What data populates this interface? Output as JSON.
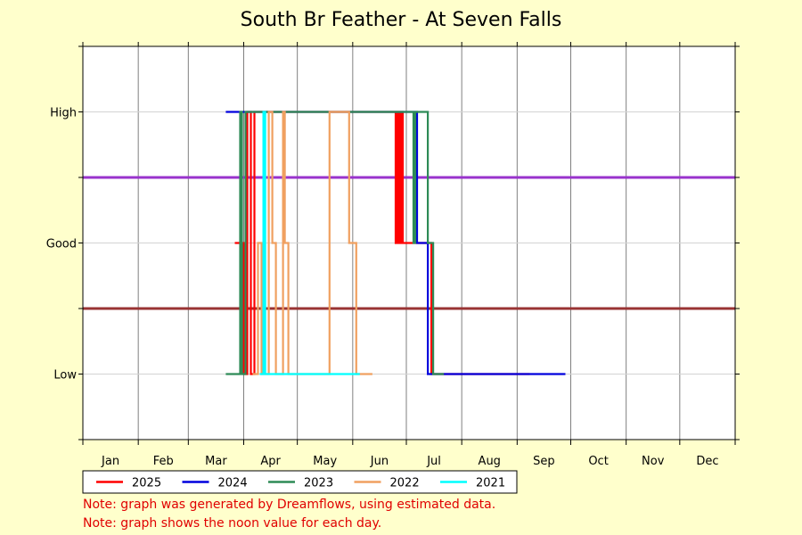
{
  "chart_data": {
    "type": "line",
    "title": "South Br Feather - At Seven Falls",
    "xlabel": "",
    "ylabel": "",
    "x_categories": [
      "Jan",
      "Feb",
      "Mar",
      "Apr",
      "May",
      "Jun",
      "Jul",
      "Aug",
      "Sep",
      "Oct",
      "Nov",
      "Dec"
    ],
    "y_categories": [
      "Low",
      "Good",
      "High"
    ],
    "y_levels": {
      "Low": 0,
      "Good": 1,
      "High": 2
    },
    "ylim": [
      -0.5,
      2.5
    ],
    "xlim_days": [
      0,
      365
    ],
    "grid": true,
    "legend_position": "bottom",
    "reference_lines": [
      {
        "y": 1.5,
        "color": "#9933cc"
      },
      {
        "y": 0.5,
        "color": "#993333"
      }
    ],
    "series": [
      {
        "name": "2025",
        "color": "#ff0000",
        "points": [
          [
            85,
            1
          ],
          [
            90,
            1
          ],
          [
            90,
            0
          ],
          [
            92,
            0
          ],
          [
            92,
            2
          ],
          [
            94,
            2
          ],
          [
            94,
            0
          ],
          [
            96,
            0
          ],
          [
            96,
            2
          ],
          [
            175,
            2
          ],
          [
            175,
            1
          ],
          [
            176,
            1
          ],
          [
            176,
            2
          ],
          [
            177,
            2
          ],
          [
            177,
            1
          ],
          [
            178,
            1
          ],
          [
            178,
            2
          ],
          [
            179,
            2
          ],
          [
            179,
            1
          ],
          [
            195,
            1
          ],
          [
            195,
            0
          ],
          [
            250,
            0
          ]
        ]
      },
      {
        "name": "2024",
        "color": "#0000dd",
        "points": [
          [
            80,
            2
          ],
          [
            187,
            2
          ],
          [
            187,
            1
          ],
          [
            193,
            1
          ],
          [
            193,
            0
          ],
          [
            270,
            0
          ]
        ]
      },
      {
        "name": "2023",
        "color": "#2e8b57",
        "points": [
          [
            80,
            0
          ],
          [
            88,
            0
          ],
          [
            88,
            2
          ],
          [
            89,
            2
          ],
          [
            89,
            0
          ],
          [
            91,
            0
          ],
          [
            91,
            2
          ],
          [
            185,
            2
          ],
          [
            185,
            1
          ],
          [
            186,
            1
          ],
          [
            186,
            2
          ],
          [
            193,
            2
          ],
          [
            193,
            1
          ],
          [
            196,
            1
          ],
          [
            196,
            0
          ],
          [
            202,
            0
          ]
        ]
      },
      {
        "name": "2022",
        "color": "#f0a060",
        "points": [
          [
            95,
            0
          ],
          [
            98,
            0
          ],
          [
            98,
            1
          ],
          [
            100,
            1
          ],
          [
            100,
            0
          ],
          [
            104,
            0
          ],
          [
            104,
            2
          ],
          [
            106,
            2
          ],
          [
            106,
            1
          ],
          [
            108,
            1
          ],
          [
            108,
            0
          ],
          [
            112,
            0
          ],
          [
            112,
            2
          ],
          [
            113,
            2
          ],
          [
            113,
            1
          ],
          [
            115,
            1
          ],
          [
            115,
            0
          ],
          [
            138,
            0
          ],
          [
            138,
            2
          ],
          [
            149,
            2
          ],
          [
            149,
            1
          ],
          [
            153,
            1
          ],
          [
            153,
            0
          ],
          [
            162,
            0
          ]
        ]
      },
      {
        "name": "2021",
        "color": "#00ffff",
        "points": [
          [
            99,
            0
          ],
          [
            101,
            0
          ],
          [
            101,
            2
          ],
          [
            102,
            2
          ],
          [
            102,
            0
          ],
          [
            110,
            0
          ],
          [
            140,
            0
          ],
          [
            155,
            0
          ]
        ]
      }
    ]
  },
  "notes": [
    "Note: graph was generated by Dreamflows, using estimated data.",
    "Note: graph shows the noon value for each day."
  ]
}
